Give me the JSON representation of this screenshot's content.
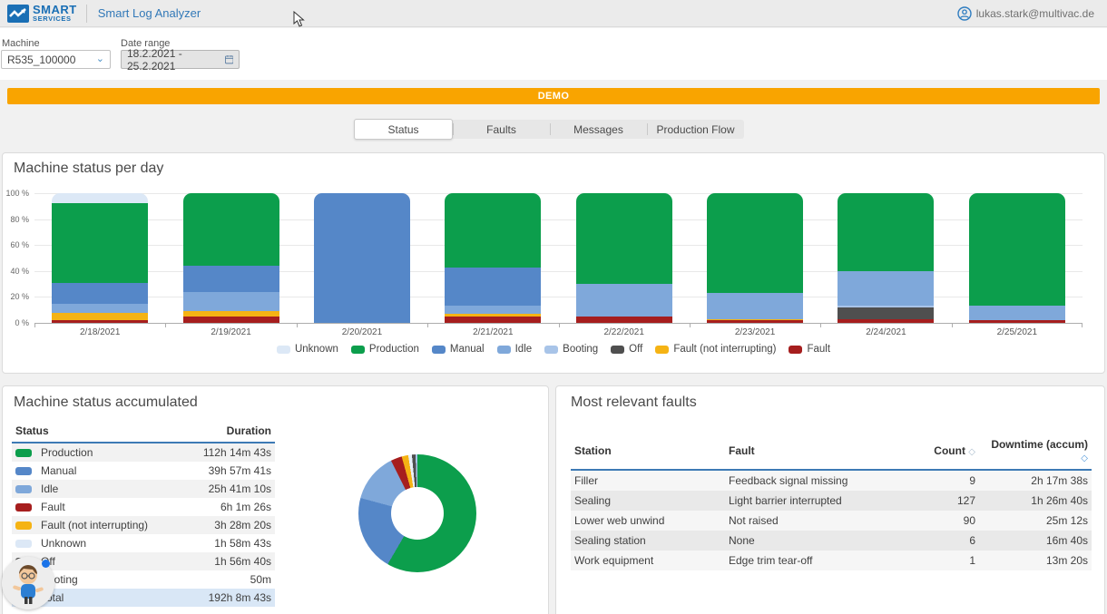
{
  "header": {
    "logo_line1": "SMART",
    "logo_line2": "SERVICES",
    "app_title": "Smart Log Analyzer",
    "user_email": "lukas.stark@multivac.de"
  },
  "filters": {
    "machine_label": "Machine",
    "machine_value": "R535_100000",
    "date_label": "Date range",
    "date_value": "18.2.2021 - 25.2.2021"
  },
  "banner": {
    "text": "DEMO",
    "color": "#F9A400"
  },
  "tabs": [
    {
      "label": "Status",
      "selected": true
    },
    {
      "label": "Faults",
      "selected": false
    },
    {
      "label": "Messages",
      "selected": false
    },
    {
      "label": "Production Flow",
      "selected": false
    }
  ],
  "accumulated": {
    "title": "Machine status accumulated",
    "columns": [
      "Status",
      "Duration"
    ],
    "rows": [
      {
        "label": "Production",
        "duration": "112h 14m 43s",
        "color": "#0C9E4C"
      },
      {
        "label": "Manual",
        "duration": "39h 57m 41s",
        "color": "#5587C8"
      },
      {
        "label": "Idle",
        "duration": "25h 41m 10s",
        "color": "#7FA8DA"
      },
      {
        "label": "Fault",
        "duration": "6h 1m 26s",
        "color": "#A61E1E"
      },
      {
        "label": "Fault (not interrupting)",
        "duration": "3h 28m 20s",
        "color": "#F5B314"
      },
      {
        "label": "Unknown",
        "duration": "1h 58m 43s",
        "color": "#DCE8F6"
      },
      {
        "label": "Off",
        "duration": "1h 56m 40s",
        "color": "#4F4F4F"
      },
      {
        "label": "Booting",
        "duration": "50m",
        "color": "#A8C4E8"
      }
    ],
    "total": {
      "label": "Total",
      "duration": "192h 8m 43s"
    }
  },
  "faults": {
    "title": "Most relevant faults",
    "columns": [
      "Station",
      "Fault",
      "Count",
      "Downtime (accum)"
    ],
    "rows": [
      [
        "Filler",
        "Feedback signal missing",
        "9",
        "2h 17m 38s"
      ],
      [
        "Sealing",
        "Light barrier interrupted",
        "127",
        "1h 26m 40s"
      ],
      [
        "Lower web unwind",
        "Not raised",
        "90",
        "25m 12s"
      ],
      [
        "Sealing station",
        "None",
        "6",
        "16m 40s"
      ],
      [
        "Work equipment",
        "Edge trim tear-off",
        "1",
        "13m 20s"
      ]
    ]
  },
  "chart_data": [
    {
      "type": "bar",
      "stacked": true,
      "title": "Machine status per day",
      "categories": [
        "2/18/2021",
        "2/19/2021",
        "2/20/2021",
        "2/21/2021",
        "2/22/2021",
        "2/23/2021",
        "2/24/2021",
        "2/25/2021"
      ],
      "ylim": [
        0,
        100
      ],
      "yticks": [
        "0 %",
        "20 %",
        "40 %",
        "60 %",
        "80 %",
        "100 %"
      ],
      "grid": true,
      "legend_position": "bottom",
      "legend_order": [
        "Unknown",
        "Production",
        "Manual",
        "Idle",
        "Booting",
        "Off",
        "Fault (not interrupting)",
        "Fault"
      ],
      "series": [
        {
          "name": "Fault",
          "color": "#A61E1E",
          "values": [
            2,
            5,
            0,
            5,
            5,
            2,
            3,
            2
          ]
        },
        {
          "name": "Fault (not interrupting)",
          "color": "#F5B314",
          "values": [
            6,
            4,
            0,
            2,
            0,
            1,
            0,
            0
          ]
        },
        {
          "name": "Off",
          "color": "#4F4F4F",
          "values": [
            0,
            0,
            0,
            0,
            0,
            0,
            9,
            0
          ]
        },
        {
          "name": "Booting",
          "color": "#A8C4E8",
          "values": [
            0,
            0,
            0,
            0,
            0,
            0,
            1.5,
            0
          ]
        },
        {
          "name": "Idle",
          "color": "#7FA8DA",
          "values": [
            7,
            15,
            0,
            6,
            25,
            20,
            26.5,
            11
          ]
        },
        {
          "name": "Manual",
          "color": "#5587C8",
          "values": [
            16,
            20,
            100,
            30,
            0,
            0,
            0,
            0
          ]
        },
        {
          "name": "Production",
          "color": "#0C9E4C",
          "values": [
            61,
            56,
            0,
            57,
            70,
            77,
            60,
            87
          ]
        },
        {
          "name": "Unknown",
          "color": "#DCE8F6",
          "values": [
            8,
            0,
            0,
            0,
            0,
            0,
            0,
            0
          ]
        }
      ]
    },
    {
      "type": "pie",
      "donut": true,
      "title": "Machine status accumulated (share of total 192h 8m 43s)",
      "segments": [
        {
          "name": "Production",
          "color": "#0C9E4C",
          "percent": 58.4
        },
        {
          "name": "Manual",
          "color": "#5587C8",
          "percent": 20.8
        },
        {
          "name": "Idle",
          "color": "#7FA8DA",
          "percent": 13.4
        },
        {
          "name": "Fault",
          "color": "#A61E1E",
          "percent": 3.1
        },
        {
          "name": "Fault (not interrupting)",
          "color": "#F5B314",
          "percent": 1.8
        },
        {
          "name": "Unknown",
          "color": "#E8F0FA",
          "percent": 1.0
        },
        {
          "name": "Off",
          "color": "#4F4F4F",
          "percent": 1.0
        },
        {
          "name": "Booting",
          "color": "#A8C4E8",
          "percent": 0.5
        }
      ]
    }
  ]
}
